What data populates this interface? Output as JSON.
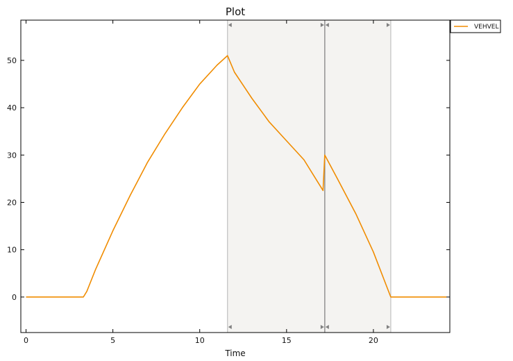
{
  "chart_data": {
    "type": "line",
    "title": "Plot",
    "xlabel": "Time",
    "ylabel": "",
    "xlim": [
      -0.3,
      24.4
    ],
    "ylim": [
      -7.5,
      58.5
    ],
    "xticks": [
      0,
      5,
      10,
      15,
      20
    ],
    "yticks": [
      0,
      10,
      20,
      30,
      40,
      50
    ],
    "grid": false,
    "legend_position": "outside-top-right",
    "series": [
      {
        "name": "VEHVEL",
        "color": "#f08c00",
        "points": [
          [
            0,
            0
          ],
          [
            3.3,
            0
          ],
          [
            3.5,
            1.2
          ],
          [
            4.0,
            5.8
          ],
          [
            5.0,
            14.0
          ],
          [
            6.0,
            21.5
          ],
          [
            7.0,
            28.5
          ],
          [
            8.0,
            34.5
          ],
          [
            9.0,
            40.0
          ],
          [
            10.0,
            45.0
          ],
          [
            11.0,
            49.0
          ],
          [
            11.6,
            51.0
          ],
          [
            12.0,
            47.5
          ],
          [
            13.0,
            42.0
          ],
          [
            14.0,
            37.0
          ],
          [
            15.0,
            33.0
          ],
          [
            16.0,
            29.0
          ],
          [
            17.1,
            22.5
          ],
          [
            17.2,
            30.0
          ],
          [
            18.0,
            24.5
          ],
          [
            19.0,
            17.5
          ],
          [
            20.0,
            9.5
          ],
          [
            21.0,
            0
          ],
          [
            24.2,
            0
          ]
        ]
      }
    ],
    "shaded_regions": [
      {
        "x": [
          11.6,
          17.2
        ],
        "color": "#f4f3f1"
      },
      {
        "x": [
          17.2,
          21.0
        ],
        "color": "#f4f3f1"
      }
    ],
    "vertical_markers": [
      11.6,
      17.2,
      21.0
    ]
  }
}
